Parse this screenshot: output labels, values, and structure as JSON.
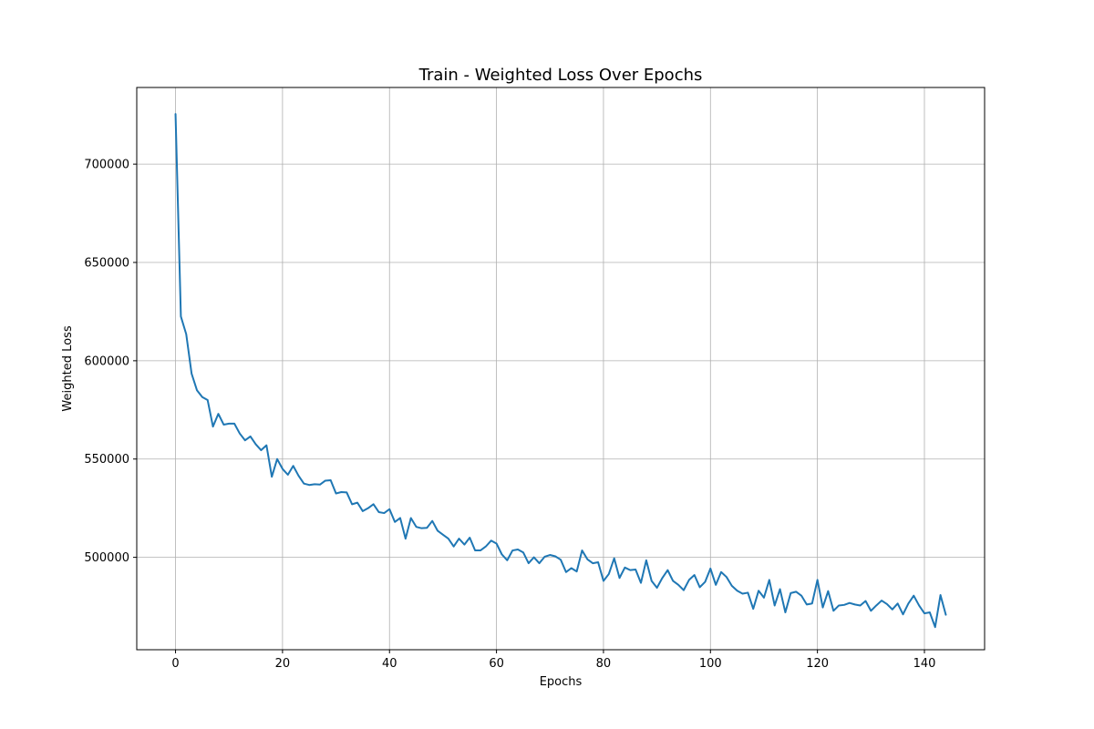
{
  "chart_data": {
    "type": "line",
    "title": "Train - Weighted Loss Over Epochs",
    "xlabel": "Epochs",
    "ylabel": "Weighted Loss",
    "xlim": [
      -7.25,
      151.25
    ],
    "ylim": [
      453000,
      739000
    ],
    "xticks": [
      0,
      20,
      40,
      60,
      80,
      100,
      120,
      140
    ],
    "yticks": [
      500000,
      550000,
      600000,
      650000,
      700000
    ],
    "grid": true,
    "legend": "none",
    "series": [
      {
        "color": "#1f77b4",
        "x": [
          0,
          1,
          2,
          3,
          4,
          5,
          6,
          7,
          8,
          9,
          10,
          11,
          12,
          13,
          14,
          15,
          16,
          17,
          18,
          19,
          20,
          21,
          22,
          23,
          24,
          25,
          26,
          27,
          28,
          29,
          30,
          31,
          32,
          33,
          34,
          35,
          36,
          37,
          38,
          39,
          40,
          41,
          42,
          43,
          44,
          45,
          46,
          47,
          48,
          49,
          50,
          51,
          52,
          53,
          54,
          55,
          56,
          57,
          58,
          59,
          60,
          61,
          62,
          63,
          64,
          65,
          66,
          67,
          68,
          69,
          70,
          71,
          72,
          73,
          74,
          75,
          76,
          77,
          78,
          79,
          80,
          81,
          82,
          83,
          84,
          85,
          86,
          87,
          88,
          89,
          90,
          91,
          92,
          93,
          94,
          95,
          96,
          97,
          98,
          99,
          100,
          101,
          102,
          103,
          104,
          105,
          106,
          107,
          108,
          109,
          110,
          111,
          112,
          113,
          114,
          115,
          116,
          117,
          118,
          119,
          120,
          121,
          122,
          123,
          124,
          125,
          126,
          127,
          128,
          129,
          130,
          131,
          132,
          133,
          134,
          135,
          136,
          137,
          138,
          139,
          140,
          141,
          142,
          143,
          144
        ],
        "values": [
          725500,
          622500,
          613500,
          593500,
          585000,
          581500,
          580000,
          566500,
          573000,
          567500,
          568000,
          568000,
          563000,
          559500,
          561500,
          557500,
          554500,
          557000,
          541000,
          550000,
          545000,
          542000,
          546500,
          541500,
          537500,
          536800,
          537200,
          537000,
          539000,
          539200,
          532500,
          533200,
          533000,
          527000,
          527800,
          523500,
          525000,
          527000,
          523000,
          522500,
          524500,
          518000,
          520000,
          509500,
          520000,
          515500,
          514800,
          515000,
          518500,
          513500,
          511500,
          509500,
          505500,
          509500,
          506500,
          510000,
          503500,
          503500,
          505500,
          508500,
          507000,
          501500,
          498500,
          503500,
          504000,
          502500,
          497000,
          500000,
          497000,
          500300,
          501200,
          500500,
          498800,
          492500,
          494500,
          492800,
          503500,
          499000,
          497000,
          497500,
          488000,
          491500,
          499500,
          489500,
          494800,
          493500,
          493800,
          487000,
          498500,
          488000,
          484500,
          489500,
          493500,
          488000,
          486000,
          483300,
          488500,
          491000,
          484800,
          487500,
          494300,
          486000,
          492500,
          490000,
          485500,
          483000,
          481500,
          482000,
          473800,
          483000,
          479500,
          488500,
          475500,
          483800,
          472000,
          481800,
          482500,
          480500,
          476000,
          476500,
          488500,
          474500,
          482800,
          472800,
          475500,
          475800,
          476800,
          476000,
          475500,
          477800,
          472800,
          475500,
          478000,
          476200,
          473500,
          476500,
          471000,
          476500,
          480500,
          475500,
          471500,
          472000,
          464500,
          480800,
          470800
        ]
      }
    ]
  }
}
